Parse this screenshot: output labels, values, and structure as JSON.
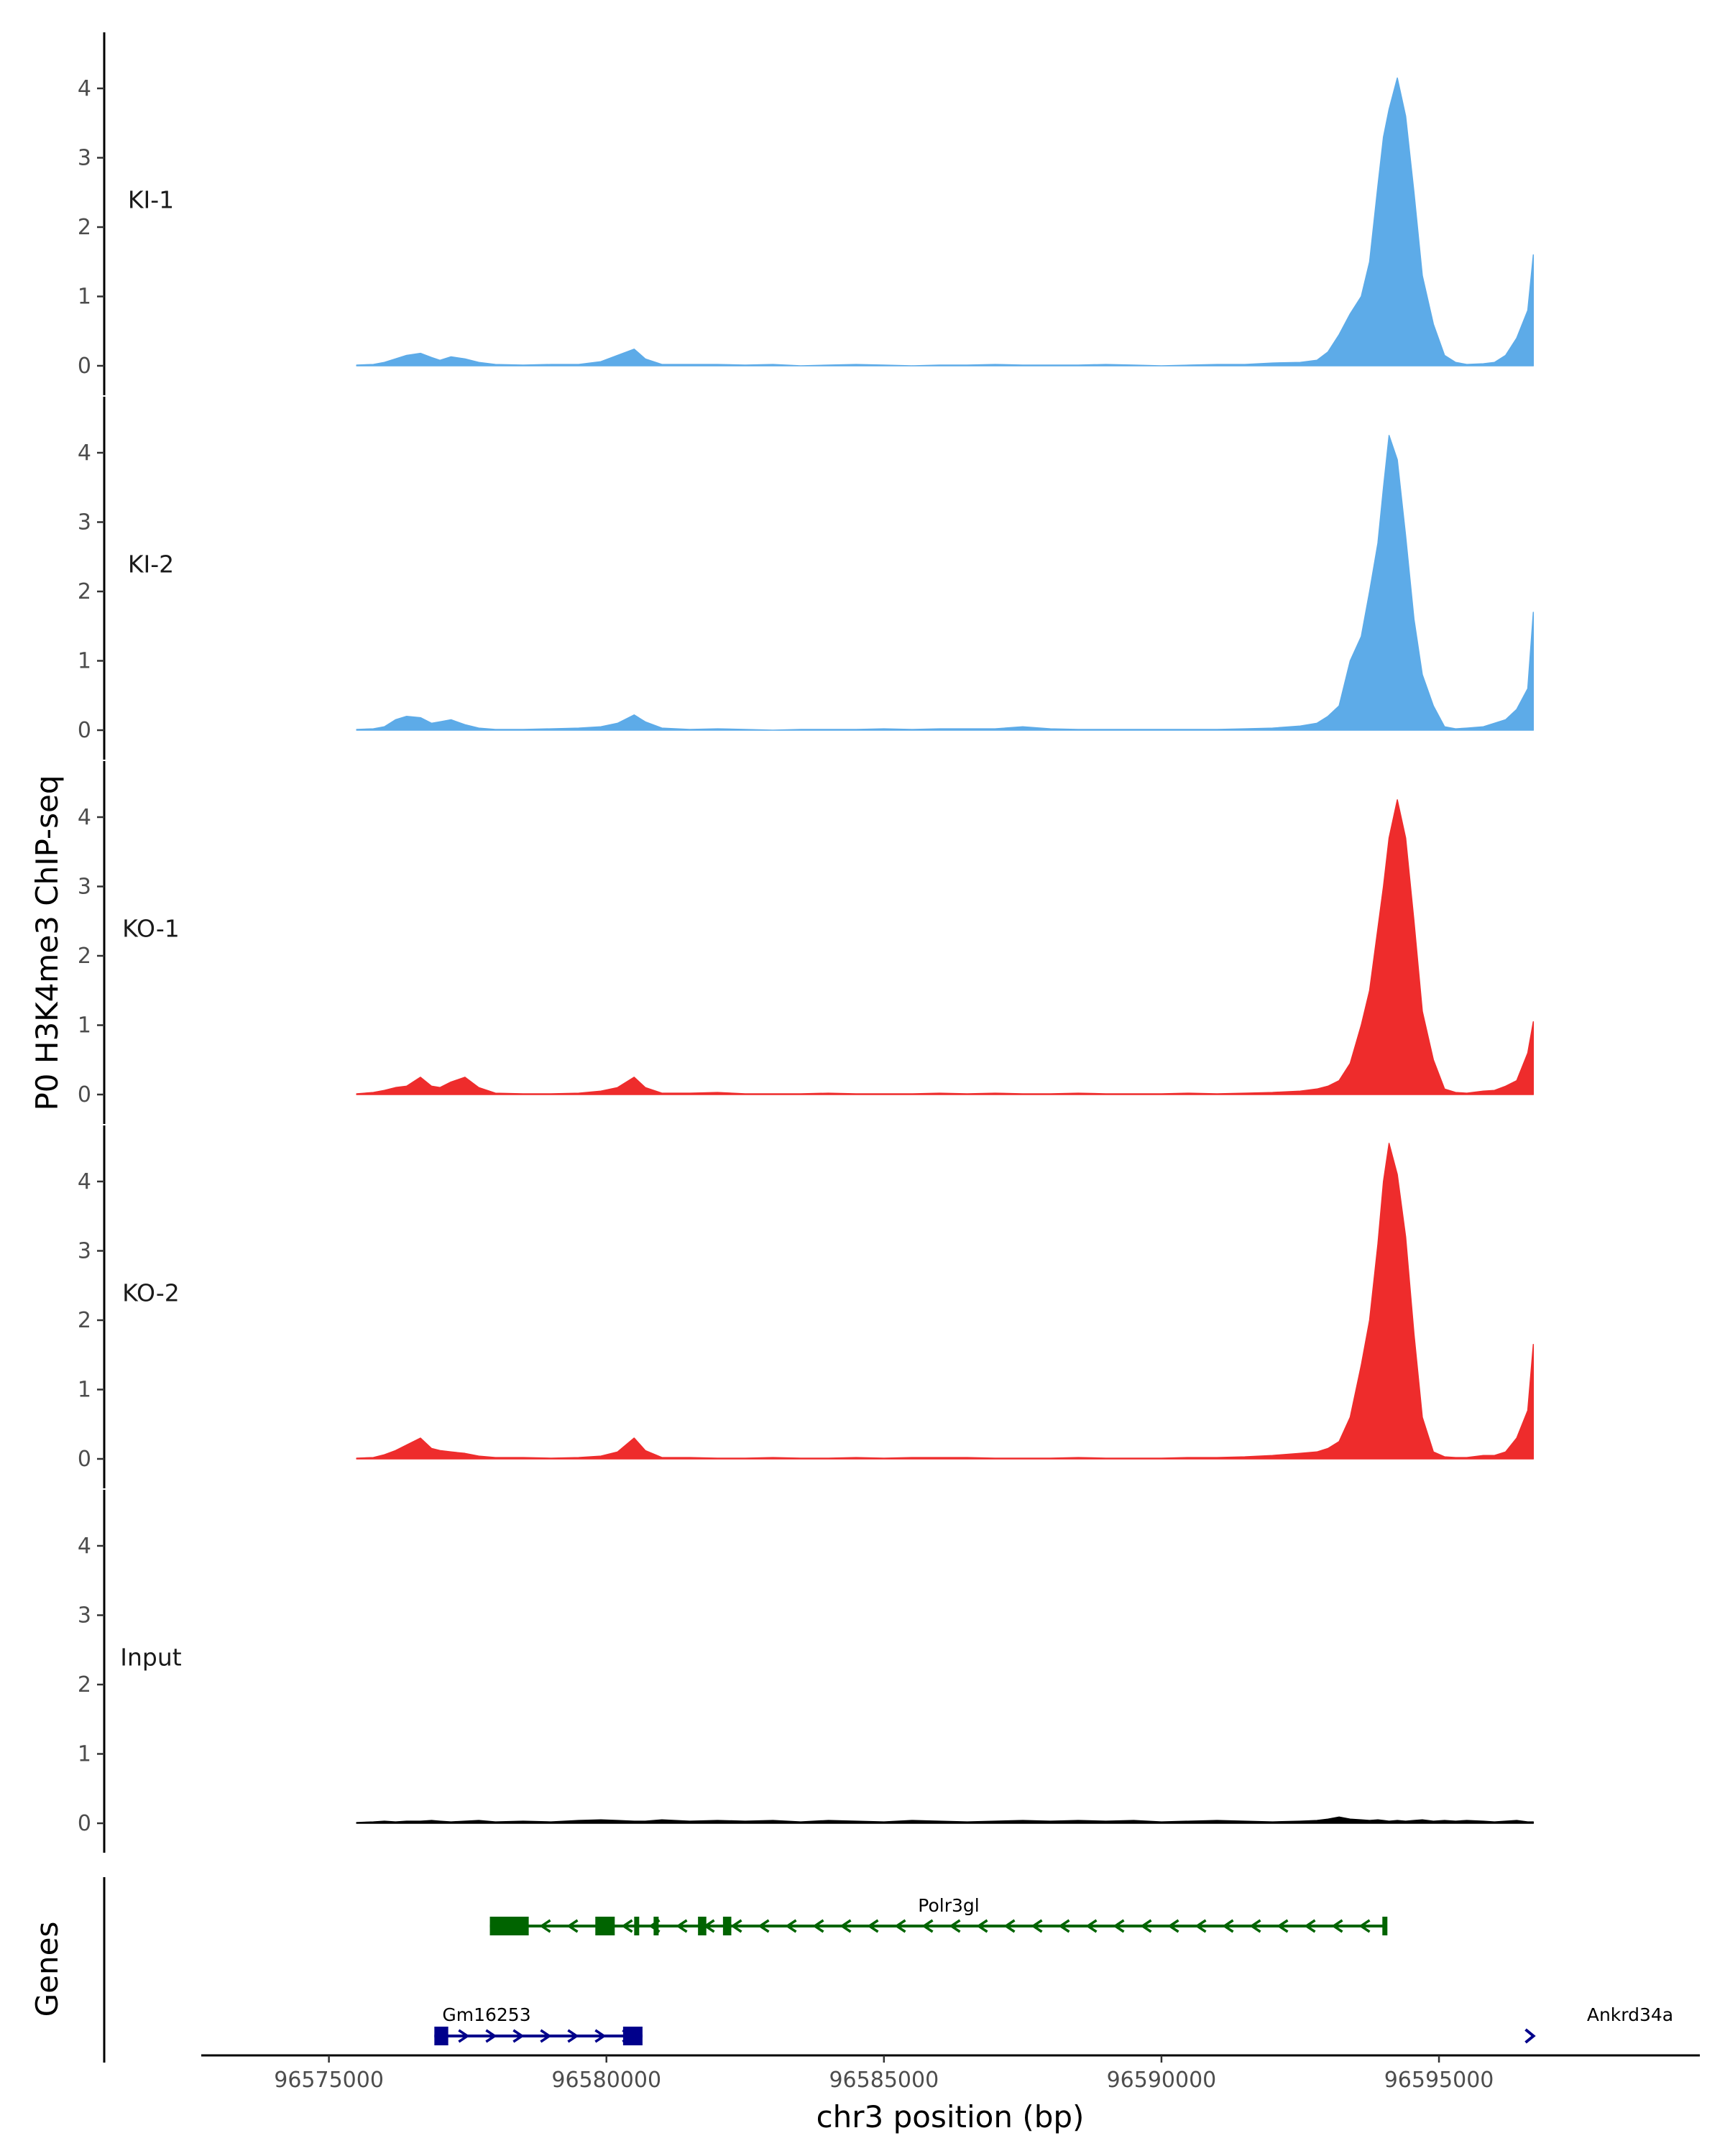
{
  "chart_data": {
    "type": "area",
    "ylabel": "P0 H3K4me3 ChIP-seq",
    "xlabel": "chr3 position (bp)",
    "genes_label": "Genes",
    "x_range": [
      96572700,
      96599700
    ],
    "x_ticks": [
      96575000,
      96580000,
      96585000,
      96590000,
      96595000
    ],
    "x_tick_labels": [
      "96575000",
      "96580000",
      "96585000",
      "96590000",
      "96595000"
    ],
    "y_range": [
      0,
      4.75
    ],
    "y_ticks": [
      0,
      1,
      2,
      3,
      4
    ],
    "y_tick_labels": [
      "0",
      "1",
      "2",
      "3",
      "4"
    ],
    "signal_x": [
      96575500,
      96575800,
      96576000,
      96576200,
      96576400,
      96576650,
      96576850,
      96577000,
      96577200,
      96577450,
      96577700,
      96578000,
      96578500,
      96579000,
      96579500,
      96579900,
      96580200,
      96580500,
      96580700,
      96581000,
      96581500,
      96582000,
      96582500,
      96583000,
      96583500,
      96584000,
      96584500,
      96585000,
      96585500,
      96586000,
      96586500,
      96587000,
      96587500,
      96588000,
      96588500,
      96589000,
      96589500,
      96590000,
      96590500,
      96591000,
      96591500,
      96592000,
      96592500,
      96592800,
      96593000,
      96593200,
      96593400,
      96593600,
      96593750,
      96593900,
      96594000,
      96594100,
      96594250,
      96594400,
      96594550,
      96594700,
      96594900,
      96595100,
      96595300,
      96595500,
      96595800,
      96596000,
      96596200,
      96596400,
      96596600,
      96596700
    ],
    "series": [
      {
        "name": "KI-1",
        "color": "#5dabe8",
        "values": [
          0.01,
          0.02,
          0.05,
          0.1,
          0.15,
          0.18,
          0.12,
          0.08,
          0.13,
          0.1,
          0.05,
          0.02,
          0.01,
          0.02,
          0.02,
          0.06,
          0.15,
          0.24,
          0.1,
          0.02,
          0.02,
          0.02,
          0.01,
          0.02,
          0.0,
          0.01,
          0.02,
          0.01,
          0.0,
          0.01,
          0.01,
          0.02,
          0.01,
          0.01,
          0.01,
          0.02,
          0.01,
          0.0,
          0.01,
          0.02,
          0.02,
          0.04,
          0.05,
          0.08,
          0.2,
          0.45,
          0.75,
          1.0,
          1.5,
          2.6,
          3.3,
          3.7,
          4.15,
          3.6,
          2.5,
          1.3,
          0.6,
          0.15,
          0.05,
          0.02,
          0.03,
          0.05,
          0.15,
          0.4,
          0.8,
          1.6
        ]
      },
      {
        "name": "KI-2",
        "color": "#5dabe8",
        "values": [
          0.01,
          0.02,
          0.05,
          0.15,
          0.2,
          0.18,
          0.1,
          0.12,
          0.15,
          0.08,
          0.03,
          0.01,
          0.01,
          0.02,
          0.03,
          0.05,
          0.1,
          0.22,
          0.12,
          0.03,
          0.01,
          0.02,
          0.01,
          0.0,
          0.01,
          0.01,
          0.01,
          0.02,
          0.01,
          0.02,
          0.02,
          0.02,
          0.05,
          0.02,
          0.01,
          0.01,
          0.01,
          0.01,
          0.01,
          0.01,
          0.02,
          0.03,
          0.06,
          0.1,
          0.2,
          0.35,
          1.0,
          1.35,
          2.0,
          2.7,
          3.5,
          4.25,
          3.9,
          2.8,
          1.6,
          0.8,
          0.35,
          0.05,
          0.02,
          0.03,
          0.05,
          0.1,
          0.15,
          0.3,
          0.6,
          1.7
        ]
      },
      {
        "name": "KO-1",
        "color": "#ee2c2c",
        "values": [
          0.01,
          0.03,
          0.06,
          0.1,
          0.12,
          0.25,
          0.12,
          0.1,
          0.18,
          0.25,
          0.1,
          0.02,
          0.01,
          0.01,
          0.02,
          0.05,
          0.1,
          0.25,
          0.1,
          0.02,
          0.02,
          0.03,
          0.01,
          0.01,
          0.01,
          0.02,
          0.01,
          0.01,
          0.01,
          0.02,
          0.01,
          0.02,
          0.01,
          0.01,
          0.02,
          0.01,
          0.01,
          0.01,
          0.02,
          0.01,
          0.02,
          0.03,
          0.05,
          0.08,
          0.12,
          0.2,
          0.45,
          1.0,
          1.5,
          2.4,
          3.0,
          3.7,
          4.25,
          3.7,
          2.5,
          1.2,
          0.5,
          0.08,
          0.03,
          0.02,
          0.05,
          0.06,
          0.12,
          0.2,
          0.6,
          1.05
        ]
      },
      {
        "name": "KO-2",
        "color": "#ee2c2c",
        "values": [
          0.01,
          0.02,
          0.06,
          0.12,
          0.2,
          0.3,
          0.15,
          0.12,
          0.1,
          0.08,
          0.04,
          0.02,
          0.02,
          0.01,
          0.02,
          0.04,
          0.1,
          0.3,
          0.12,
          0.02,
          0.02,
          0.01,
          0.01,
          0.02,
          0.01,
          0.01,
          0.02,
          0.01,
          0.02,
          0.02,
          0.02,
          0.01,
          0.01,
          0.01,
          0.02,
          0.01,
          0.01,
          0.01,
          0.02,
          0.02,
          0.03,
          0.05,
          0.08,
          0.1,
          0.15,
          0.25,
          0.6,
          1.35,
          2.0,
          3.1,
          4.0,
          4.55,
          4.1,
          3.2,
          1.8,
          0.6,
          0.1,
          0.03,
          0.02,
          0.02,
          0.05,
          0.05,
          0.1,
          0.3,
          0.7,
          1.65
        ]
      },
      {
        "name": "Input",
        "color": "#000000",
        "values": [
          0.01,
          0.02,
          0.03,
          0.02,
          0.03,
          0.03,
          0.04,
          0.03,
          0.02,
          0.03,
          0.04,
          0.02,
          0.03,
          0.02,
          0.04,
          0.05,
          0.04,
          0.03,
          0.03,
          0.05,
          0.03,
          0.04,
          0.03,
          0.04,
          0.02,
          0.04,
          0.03,
          0.02,
          0.04,
          0.03,
          0.02,
          0.03,
          0.04,
          0.03,
          0.04,
          0.03,
          0.04,
          0.02,
          0.03,
          0.04,
          0.03,
          0.02,
          0.03,
          0.04,
          0.06,
          0.09,
          0.06,
          0.05,
          0.04,
          0.05,
          0.04,
          0.03,
          0.04,
          0.03,
          0.04,
          0.05,
          0.03,
          0.04,
          0.03,
          0.04,
          0.03,
          0.02,
          0.03,
          0.04,
          0.02,
          0.02
        ]
      }
    ],
    "genes": [
      {
        "name": "Polr3gl",
        "strand": "-",
        "color": "#006400",
        "start": 96577900,
        "end": 96594050,
        "exons": [
          [
            96577900,
            96578600
          ],
          [
            96579800,
            96580150
          ],
          [
            96580500,
            96580560
          ],
          [
            96580850,
            96580920
          ],
          [
            96581650,
            96581800
          ],
          [
            96582100,
            96582250
          ],
          [
            96593980,
            96594050
          ]
        ]
      },
      {
        "name": "Gm16253",
        "strand": "+",
        "color": "#00008b",
        "start": 96576900,
        "end": 96580650,
        "exons": [
          [
            96576900,
            96577150
          ],
          [
            96580300,
            96580650
          ]
        ]
      },
      {
        "name": "Ankrd34a",
        "strand": "+",
        "color": "#00008b",
        "start": 96596550,
        "end": 96596700,
        "exons": []
      }
    ]
  }
}
